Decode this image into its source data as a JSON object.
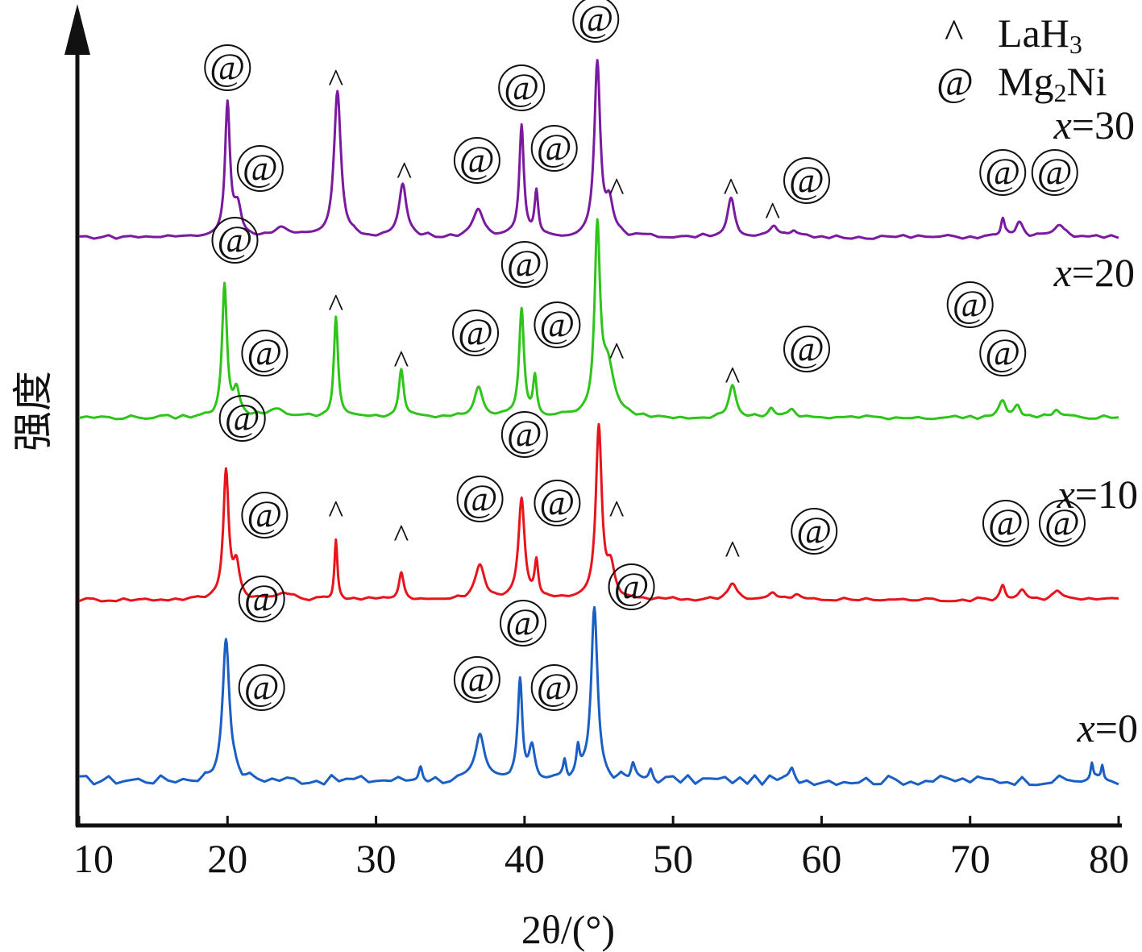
{
  "chart_data": {
    "type": "line",
    "title": "",
    "xlabel": "2θ/(°)",
    "ylabel": "强度",
    "xlim": [
      10,
      80
    ],
    "xticks": [
      "10",
      "20",
      "30",
      "40",
      "50",
      "60",
      "70",
      "80"
    ],
    "y_ticks_shown": false,
    "grid": false,
    "legend": {
      "position": "top-right",
      "entries": [
        {
          "symbol": "^",
          "label": "LaH",
          "subscript": "3"
        },
        {
          "symbol": "@",
          "label": "Mg",
          "subscript": "2",
          "suffix": "Ni"
        }
      ]
    },
    "series": [
      {
        "name": "x=0",
        "label_prefix": "x",
        "label_suffix": "=0",
        "color": "#1a5fc4",
        "baseline": 0,
        "peaks": [
          {
            "x": 19.9,
            "h": 180,
            "w": 0.28
          },
          {
            "x": 33.0,
            "h": 20,
            "w": 0.15
          },
          {
            "x": 37.0,
            "h": 52,
            "w": 0.35
          },
          {
            "x": 39.7,
            "h": 120,
            "w": 0.18
          },
          {
            "x": 40.5,
            "h": 42,
            "w": 0.25
          },
          {
            "x": 42.7,
            "h": 22,
            "w": 0.12
          },
          {
            "x": 43.6,
            "h": 30,
            "w": 0.12
          },
          {
            "x": 44.7,
            "h": 215,
            "w": 0.26
          },
          {
            "x": 47.3,
            "h": 18,
            "w": 0.15
          },
          {
            "x": 48.5,
            "h": 14,
            "w": 0.15
          },
          {
            "x": 58.0,
            "h": 12,
            "w": 0.2
          },
          {
            "x": 78.2,
            "h": 20,
            "w": 0.1
          },
          {
            "x": 78.9,
            "h": 18,
            "w": 0.1
          }
        ],
        "markers": [
          {
            "x": 22.3,
            "rise": 210,
            "sym": "@"
          },
          {
            "x": 22.3,
            "rise": 100,
            "sym": "@"
          },
          {
            "x": 36.8,
            "rise": 110,
            "sym": "@"
          },
          {
            "x": 39.9,
            "rise": 180,
            "sym": "@"
          },
          {
            "x": 42.0,
            "rise": 100,
            "sym": "@"
          },
          {
            "x": 47.2,
            "rise": 225,
            "sym": "@"
          }
        ]
      },
      {
        "name": "x=10",
        "label_prefix": "x",
        "label_suffix": "=10",
        "color": "#e8141c",
        "baseline": 1,
        "peaks": [
          {
            "x": 19.9,
            "h": 160,
            "w": 0.22
          },
          {
            "x": 20.6,
            "h": 40,
            "w": 0.25
          },
          {
            "x": 23.8,
            "h": 8,
            "w": 0.6
          },
          {
            "x": 27.3,
            "h": 75,
            "w": 0.12
          },
          {
            "x": 31.7,
            "h": 35,
            "w": 0.2
          },
          {
            "x": 37.0,
            "h": 42,
            "w": 0.4
          },
          {
            "x": 39.8,
            "h": 125,
            "w": 0.25
          },
          {
            "x": 40.8,
            "h": 45,
            "w": 0.15
          },
          {
            "x": 45.0,
            "h": 215,
            "w": 0.24
          },
          {
            "x": 45.8,
            "h": 35,
            "w": 0.3
          },
          {
            "x": 54.0,
            "h": 22,
            "w": 0.35
          },
          {
            "x": 56.7,
            "h": 8,
            "w": 0.3
          },
          {
            "x": 58.3,
            "h": 6,
            "w": 0.3
          },
          {
            "x": 72.2,
            "h": 18,
            "w": 0.2
          },
          {
            "x": 73.5,
            "h": 12,
            "w": 0.3
          },
          {
            "x": 75.9,
            "h": 12,
            "w": 0.35
          }
        ],
        "markers": [
          {
            "x": 21.0,
            "rise": 210,
            "sym": "@"
          },
          {
            "x": 22.5,
            "rise": 90,
            "sym": "@"
          },
          {
            "x": 27.3,
            "rise": 110,
            "sym": "^"
          },
          {
            "x": 31.7,
            "rise": 80,
            "sym": "^"
          },
          {
            "x": 37.0,
            "rise": 110,
            "sym": "@"
          },
          {
            "x": 40.0,
            "rise": 190,
            "sym": "@"
          },
          {
            "x": 42.2,
            "rise": 105,
            "sym": "@"
          },
          {
            "x": 46.2,
            "rise": 110,
            "sym": "^"
          },
          {
            "x": 54.0,
            "rise": 60,
            "sym": "^"
          },
          {
            "x": 59.5,
            "rise": 70,
            "sym": "@"
          },
          {
            "x": 72.4,
            "rise": 80,
            "sym": "@"
          },
          {
            "x": 76.2,
            "rise": 80,
            "sym": "@"
          }
        ]
      },
      {
        "name": "x=20",
        "label_prefix": "x",
        "label_suffix": "=20",
        "color": "#2fc41a",
        "baseline": 2,
        "peaks": [
          {
            "x": 19.8,
            "h": 165,
            "w": 0.2
          },
          {
            "x": 20.6,
            "h": 32,
            "w": 0.25
          },
          {
            "x": 23.3,
            "h": 10,
            "w": 0.8
          },
          {
            "x": 27.3,
            "h": 125,
            "w": 0.17
          },
          {
            "x": 31.7,
            "h": 60,
            "w": 0.2
          },
          {
            "x": 36.9,
            "h": 38,
            "w": 0.35
          },
          {
            "x": 39.8,
            "h": 135,
            "w": 0.2
          },
          {
            "x": 40.7,
            "h": 48,
            "w": 0.15
          },
          {
            "x": 44.9,
            "h": 225,
            "w": 0.22
          },
          {
            "x": 45.6,
            "h": 60,
            "w": 0.5
          },
          {
            "x": 54.0,
            "h": 38,
            "w": 0.3
          },
          {
            "x": 56.6,
            "h": 12,
            "w": 0.25
          },
          {
            "x": 58.0,
            "h": 8,
            "w": 0.3
          },
          {
            "x": 72.2,
            "h": 20,
            "w": 0.3
          },
          {
            "x": 73.2,
            "h": 14,
            "w": 0.25
          },
          {
            "x": 75.8,
            "h": 10,
            "w": 0.3
          }
        ],
        "markers": [
          {
            "x": 20.5,
            "rise": 205,
            "sym": "@"
          },
          {
            "x": 22.5,
            "rise": 65,
            "sym": "@"
          },
          {
            "x": 27.3,
            "rise": 140,
            "sym": "^"
          },
          {
            "x": 31.7,
            "rise": 70,
            "sym": "^"
          },
          {
            "x": 36.7,
            "rise": 90,
            "sym": "@"
          },
          {
            "x": 40.0,
            "rise": 175,
            "sym": "@"
          },
          {
            "x": 42.2,
            "rise": 100,
            "sym": "@"
          },
          {
            "x": 46.2,
            "rise": 80,
            "sym": "^"
          },
          {
            "x": 54.0,
            "rise": 50,
            "sym": "^"
          },
          {
            "x": 59.0,
            "rise": 70,
            "sym": "@"
          },
          {
            "x": 70.0,
            "rise": 125,
            "sym": "@"
          },
          {
            "x": 72.2,
            "rise": 65,
            "sym": "@"
          }
        ]
      },
      {
        "name": "x=30",
        "label_prefix": "x",
        "label_suffix": "=30",
        "color": "#7a1a9e",
        "baseline": 3,
        "peaks": [
          {
            "x": 20.0,
            "h": 165,
            "w": 0.2
          },
          {
            "x": 20.7,
            "h": 35,
            "w": 0.3
          },
          {
            "x": 23.6,
            "h": 10,
            "w": 0.5
          },
          {
            "x": 27.4,
            "h": 180,
            "w": 0.28
          },
          {
            "x": 31.8,
            "h": 65,
            "w": 0.3
          },
          {
            "x": 36.9,
            "h": 35,
            "w": 0.4
          },
          {
            "x": 39.8,
            "h": 135,
            "w": 0.18
          },
          {
            "x": 40.8,
            "h": 55,
            "w": 0.15
          },
          {
            "x": 44.9,
            "h": 215,
            "w": 0.24
          },
          {
            "x": 45.7,
            "h": 40,
            "w": 0.3
          },
          {
            "x": 53.9,
            "h": 48,
            "w": 0.3
          },
          {
            "x": 56.8,
            "h": 12,
            "w": 0.3
          },
          {
            "x": 58.1,
            "h": 7,
            "w": 0.25
          },
          {
            "x": 72.2,
            "h": 22,
            "w": 0.15
          },
          {
            "x": 73.3,
            "h": 18,
            "w": 0.3
          },
          {
            "x": 76.0,
            "h": 14,
            "w": 0.4
          }
        ],
        "markers": [
          {
            "x": 20.0,
            "rise": 195,
            "sym": "@"
          },
          {
            "x": 22.2,
            "rise": 70,
            "sym": "@"
          },
          {
            "x": 27.3,
            "rise": 195,
            "sym": "^"
          },
          {
            "x": 31.9,
            "rise": 80,
            "sym": "^"
          },
          {
            "x": 36.8,
            "rise": 80,
            "sym": "@"
          },
          {
            "x": 39.8,
            "rise": 170,
            "sym": "@"
          },
          {
            "x": 42.0,
            "rise": 95,
            "sym": "@"
          },
          {
            "x": 44.8,
            "rise": 255,
            "sym": "@"
          },
          {
            "x": 46.2,
            "rise": 60,
            "sym": "^"
          },
          {
            "x": 53.9,
            "rise": 60,
            "sym": "^"
          },
          {
            "x": 56.7,
            "rise": 30,
            "sym": "^"
          },
          {
            "x": 59.0,
            "rise": 55,
            "sym": "@"
          },
          {
            "x": 72.2,
            "rise": 65,
            "sym": "@"
          },
          {
            "x": 75.7,
            "rise": 65,
            "sym": "@"
          }
        ]
      }
    ]
  }
}
